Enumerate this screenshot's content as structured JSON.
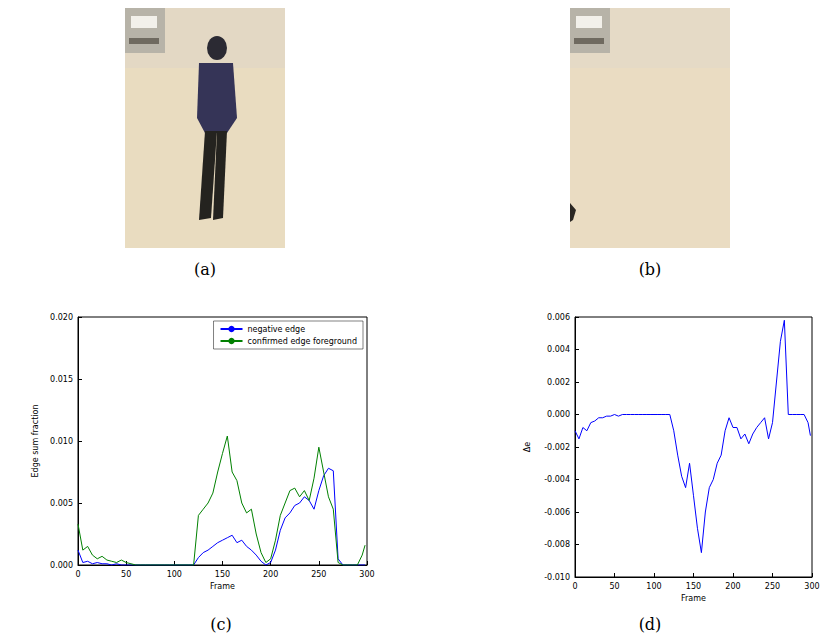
{
  "images": [
    {
      "label": "(a)"
    },
    {
      "label": "(b)"
    }
  ],
  "chart_data": [
    {
      "type": "line",
      "title": "(c)",
      "x_label": "Frame",
      "y_label": "Edge sum fraction",
      "x": [
        0,
        5,
        10,
        15,
        20,
        25,
        30,
        35,
        40,
        45,
        50,
        55,
        60,
        65,
        70,
        75,
        80,
        85,
        90,
        95,
        100,
        105,
        110,
        115,
        120,
        125,
        130,
        135,
        140,
        145,
        150,
        155,
        160,
        165,
        170,
        175,
        180,
        185,
        190,
        195,
        200,
        205,
        210,
        215,
        220,
        225,
        230,
        235,
        240,
        245,
        250,
        255,
        260,
        265,
        270,
        275,
        280,
        285,
        290,
        295,
        298
      ],
      "series": [
        {
          "name": "negative edge",
          "color": "#0000ff",
          "values": [
            0.0012,
            0.0002,
            0.0003,
            0.0001,
            0.0002,
            0.0001,
            0.0001,
            0,
            0.0001,
            0,
            0,
            0,
            0,
            0,
            0,
            0,
            0,
            0,
            0,
            0,
            0,
            0,
            0,
            0,
            0,
            0.0006,
            0.001,
            0.0012,
            0.0015,
            0.0018,
            0.002,
            0.0022,
            0.0024,
            0.0018,
            0.002,
            0.0015,
            0.0012,
            0.0008,
            0.0003,
            0,
            0.0002,
            0.0012,
            0.0028,
            0.0038,
            0.0042,
            0.0048,
            0.005,
            0.0055,
            0.0052,
            0.0045,
            0.006,
            0.0072,
            0.0078,
            0.0076,
            0.0005,
            0,
            0,
            0,
            0,
            0,
            0
          ]
        },
        {
          "name": "confirmed edge foreground",
          "color": "#008000",
          "values": [
            0.0033,
            0.0012,
            0.0015,
            0.0008,
            0.0005,
            0.0007,
            0.0004,
            0.0003,
            0.0002,
            0.0004,
            0.0002,
            0.0001,
            0,
            0,
            0,
            0,
            0,
            0,
            0,
            0,
            0,
            0,
            0,
            0,
            0,
            0.004,
            0.0045,
            0.005,
            0.0058,
            0.0075,
            0.009,
            0.0104,
            0.0075,
            0.0068,
            0.005,
            0.0042,
            0.0045,
            0.0025,
            0.001,
            0.0002,
            0.0005,
            0.002,
            0.004,
            0.005,
            0.006,
            0.0062,
            0.0055,
            0.006,
            0.0052,
            0.007,
            0.0095,
            0.0075,
            0.0055,
            0.0045,
            0.0002,
            0,
            0,
            0,
            0,
            0.0008,
            0.0016
          ]
        }
      ],
      "xlim": [
        0,
        300
      ],
      "xticks": [
        0,
        50,
        100,
        150,
        200,
        250,
        300
      ],
      "ylim": [
        0,
        0.02
      ],
      "yticks": [
        {
          "value": 0,
          "label": "0.000"
        },
        {
          "value": 0.005,
          "label": "0.005"
        },
        {
          "value": 0.01,
          "label": "0.010"
        },
        {
          "value": 0.015,
          "label": "0.015"
        },
        {
          "value": 0.02,
          "label": "0.020"
        }
      ],
      "grid": false,
      "legend": "upper right"
    },
    {
      "type": "line",
      "title": "(d)",
      "x_label": "Frame",
      "y_label": "Δe",
      "x": [
        0,
        5,
        10,
        15,
        20,
        25,
        30,
        35,
        40,
        45,
        50,
        55,
        60,
        65,
        70,
        75,
        80,
        85,
        90,
        95,
        100,
        105,
        110,
        115,
        120,
        125,
        130,
        135,
        140,
        145,
        150,
        155,
        160,
        165,
        170,
        175,
        180,
        185,
        190,
        195,
        200,
        205,
        210,
        215,
        220,
        225,
        230,
        235,
        240,
        245,
        250,
        255,
        260,
        265,
        270,
        275,
        280,
        285,
        290,
        295,
        298
      ],
      "series": [
        {
          "color": "#0000ff",
          "values": [
            -0.001,
            -0.0015,
            -0.0008,
            -0.001,
            -0.0005,
            -0.0004,
            -0.0002,
            -0.0002,
            -0.0001,
            -0.0001,
            0,
            -0.0001,
            0,
            0,
            0,
            0,
            0,
            0,
            0,
            0,
            0,
            0,
            0,
            0,
            0,
            -0.001,
            -0.0025,
            -0.0038,
            -0.0045,
            -0.003,
            -0.005,
            -0.007,
            -0.0085,
            -0.006,
            -0.0045,
            -0.004,
            -0.003,
            -0.0025,
            -0.001,
            -0.0002,
            -0.0008,
            -0.0008,
            -0.0015,
            -0.0012,
            -0.0018,
            -0.0012,
            -0.0008,
            -0.0005,
            -0.0002,
            -0.0015,
            -0.0005,
            0.002,
            0.0045,
            0.0058,
            0,
            0,
            0,
            0,
            0,
            -0.0005,
            -0.0013
          ]
        }
      ],
      "xlim": [
        0,
        300
      ],
      "xticks": [
        0,
        50,
        100,
        150,
        200,
        250,
        300
      ],
      "ylim": [
        -0.01,
        0.006
      ],
      "yticks": [
        {
          "value": -0.01,
          "label": "-0.010"
        },
        {
          "value": -0.008,
          "label": "-0.008"
        },
        {
          "value": -0.006,
          "label": "-0.006"
        },
        {
          "value": -0.004,
          "label": "-0.004"
        },
        {
          "value": -0.002,
          "label": "-0.002"
        },
        {
          "value": 0,
          "label": "0.000"
        },
        {
          "value": 0.002,
          "label": "0.002"
        },
        {
          "value": 0.004,
          "label": "0.004"
        },
        {
          "value": 0.006,
          "label": "0.006"
        }
      ],
      "grid": false
    }
  ]
}
